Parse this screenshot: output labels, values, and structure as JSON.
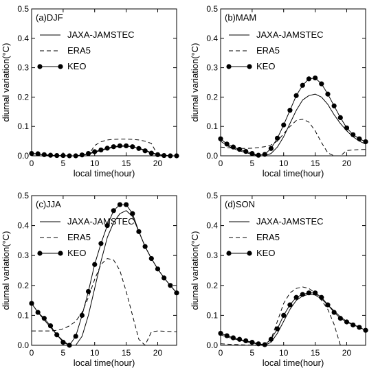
{
  "chart_data": [
    {
      "type": "line",
      "title": "(a)DJF",
      "xlabel": "local time(hour)",
      "ylabel": "diurnal variation(°C)",
      "xlim": [
        0,
        23
      ],
      "ylim": [
        0,
        0.5
      ],
      "xticks": [
        "0",
        "5",
        "10",
        "15",
        "20"
      ],
      "yticks": [
        "0.0",
        "0.1",
        "0.2",
        "0.3",
        "0.4",
        "0.5"
      ],
      "legend_position": "top-left",
      "series": [
        {
          "name": "JAXA-JAMSTEC",
          "style": "solid",
          "x": [
            0,
            1,
            2,
            3,
            4,
            5,
            6,
            7,
            8,
            9,
            10,
            11,
            12,
            13,
            14,
            15,
            16,
            17,
            18,
            19,
            20,
            21,
            22,
            23
          ],
          "values": [
            0.008,
            0.006,
            0.003,
            0.001,
            0.0,
            0.0,
            0.0,
            0.0,
            0.002,
            0.006,
            0.012,
            0.018,
            0.024,
            0.029,
            0.032,
            0.033,
            0.031,
            0.026,
            0.019,
            0.011,
            0.005,
            0.002,
            0.0,
            0.0
          ]
        },
        {
          "name": "ERA5",
          "style": "dashed",
          "x": [
            0,
            1,
            2,
            3,
            4,
            5,
            6,
            7,
            8,
            9,
            10,
            11,
            12,
            13,
            14,
            15,
            16,
            17,
            18,
            19,
            20,
            21,
            22,
            23
          ],
          "values": [
            0.0,
            0.0,
            0.0,
            0.0,
            0.0,
            0.0,
            0.0,
            0.0,
            0.0,
            0.002,
            0.035,
            0.048,
            0.054,
            0.056,
            0.057,
            0.057,
            0.056,
            0.054,
            0.05,
            0.042,
            0.002,
            0.0,
            0.0,
            0.0
          ]
        },
        {
          "name": "KEO",
          "style": "solid-marker",
          "x": [
            0,
            1,
            2,
            3,
            4,
            5,
            6,
            7,
            8,
            9,
            10,
            11,
            12,
            13,
            14,
            15,
            16,
            17,
            18,
            19,
            20,
            21,
            22,
            23
          ],
          "values": [
            0.008,
            0.007,
            0.004,
            0.002,
            0.001,
            0.001,
            0.0,
            0.0,
            0.003,
            0.008,
            0.014,
            0.02,
            0.026,
            0.031,
            0.034,
            0.034,
            0.031,
            0.025,
            0.017,
            0.009,
            0.004,
            0.001,
            0.0,
            0.0
          ]
        }
      ]
    },
    {
      "type": "line",
      "title": "(b)MAM",
      "xlabel": "local time(hour)",
      "ylabel": "diurnal variation(°C)",
      "xlim": [
        0,
        23
      ],
      "ylim": [
        0,
        0.5
      ],
      "xticks": [
        "0",
        "5",
        "10",
        "15",
        "20"
      ],
      "yticks": [
        "0.0",
        "0.1",
        "0.2",
        "0.3",
        "0.4",
        "0.5"
      ],
      "legend_position": "top-left",
      "series": [
        {
          "name": "JAXA-JAMSTEC",
          "style": "solid",
          "x": [
            0,
            1,
            2,
            3,
            4,
            5,
            6,
            7,
            8,
            9,
            10,
            11,
            12,
            13,
            14,
            15,
            16,
            17,
            18,
            19,
            20,
            21,
            22,
            23
          ],
          "values": [
            0.05,
            0.035,
            0.025,
            0.017,
            0.011,
            0.005,
            0.0,
            0.0,
            0.008,
            0.03,
            0.065,
            0.11,
            0.155,
            0.19,
            0.205,
            0.21,
            0.2,
            0.175,
            0.14,
            0.11,
            0.085,
            0.065,
            0.05,
            0.04
          ]
        },
        {
          "name": "ERA5",
          "style": "dashed",
          "x": [
            0,
            1,
            2,
            3,
            4,
            5,
            6,
            7,
            8,
            9,
            10,
            11,
            12,
            13,
            14,
            15,
            16,
            17,
            18,
            19,
            20,
            21,
            22,
            23
          ],
          "values": [
            0.03,
            0.028,
            0.026,
            0.025,
            0.025,
            0.026,
            0.028,
            0.031,
            0.037,
            0.05,
            0.075,
            0.1,
            0.12,
            0.125,
            0.115,
            0.085,
            0.045,
            0.01,
            0.0,
            0.0,
            0.018,
            0.02,
            0.021,
            0.022
          ]
        },
        {
          "name": "KEO",
          "style": "solid-marker",
          "x": [
            0,
            1,
            2,
            3,
            4,
            5,
            6,
            7,
            8,
            9,
            10,
            11,
            12,
            13,
            14,
            15,
            16,
            17,
            18,
            19,
            20,
            21,
            22,
            23
          ],
          "values": [
            0.058,
            0.04,
            0.03,
            0.022,
            0.015,
            0.008,
            0.002,
            0.005,
            0.025,
            0.06,
            0.105,
            0.155,
            0.205,
            0.24,
            0.262,
            0.265,
            0.245,
            0.21,
            0.17,
            0.13,
            0.095,
            0.072,
            0.058,
            0.048
          ]
        }
      ]
    },
    {
      "type": "line",
      "title": "(c)JJA",
      "xlabel": "local time(hour)",
      "ylabel": "diurnal variation(°C)",
      "xlim": [
        0,
        23
      ],
      "ylim": [
        0,
        0.5
      ],
      "xticks": [
        "0",
        "5",
        "10",
        "15",
        "20"
      ],
      "yticks": [
        "0.0",
        "0.1",
        "0.2",
        "0.3",
        "0.4",
        "0.5"
      ],
      "legend_position": "top-left",
      "series": [
        {
          "name": "JAXA-JAMSTEC",
          "style": "solid",
          "x": [
            0,
            1,
            2,
            3,
            4,
            5,
            6,
            7,
            8,
            9,
            10,
            11,
            12,
            13,
            14,
            15,
            16,
            17,
            18,
            19,
            20,
            21,
            22,
            23
          ],
          "values": [
            0.14,
            0.11,
            0.085,
            0.06,
            0.035,
            0.015,
            0.0,
            0.0,
            0.03,
            0.1,
            0.19,
            0.28,
            0.36,
            0.41,
            0.44,
            0.45,
            0.43,
            0.38,
            0.33,
            0.29,
            0.255,
            0.225,
            0.2,
            0.175
          ]
        },
        {
          "name": "ERA5",
          "style": "dashed",
          "x": [
            0,
            1,
            2,
            3,
            4,
            5,
            6,
            7,
            8,
            9,
            10,
            11,
            12,
            13,
            14,
            15,
            16,
            17,
            18,
            19,
            20,
            21,
            22,
            23
          ],
          "values": [
            0.048,
            0.048,
            0.048,
            0.048,
            0.05,
            0.055,
            0.065,
            0.08,
            0.11,
            0.16,
            0.22,
            0.27,
            0.29,
            0.285,
            0.25,
            0.18,
            0.1,
            0.02,
            0.0,
            0.045,
            0.048,
            0.047,
            0.046,
            0.045
          ]
        },
        {
          "name": "KEO",
          "style": "solid-marker",
          "x": [
            0,
            1,
            2,
            3,
            4,
            5,
            6,
            7,
            8,
            9,
            10,
            11,
            12,
            13,
            14,
            15,
            16,
            17,
            18,
            19,
            20,
            21,
            22,
            23
          ],
          "values": [
            0.14,
            0.11,
            0.09,
            0.065,
            0.035,
            0.01,
            0.0,
            0.03,
            0.1,
            0.18,
            0.27,
            0.34,
            0.4,
            0.45,
            0.47,
            0.47,
            0.44,
            0.38,
            0.33,
            0.29,
            0.255,
            0.225,
            0.2,
            0.175
          ]
        }
      ]
    },
    {
      "type": "line",
      "title": "(d)SON",
      "xlabel": "local time(hour)",
      "ylabel": "diurnal variation(°C)",
      "xlim": [
        0,
        23
      ],
      "ylim": [
        0,
        0.5
      ],
      "xticks": [
        "0",
        "5",
        "10",
        "15",
        "20"
      ],
      "yticks": [
        "0.0",
        "0.1",
        "0.2",
        "0.3",
        "0.4",
        "0.5"
      ],
      "legend_position": "top-left",
      "series": [
        {
          "name": "JAXA-JAMSTEC",
          "style": "solid",
          "x": [
            0,
            1,
            2,
            3,
            4,
            5,
            6,
            7,
            8,
            9,
            10,
            11,
            12,
            13,
            14,
            15,
            16,
            17,
            18,
            19,
            20,
            21,
            22,
            23
          ],
          "values": [
            0.035,
            0.028,
            0.022,
            0.017,
            0.012,
            0.008,
            0.004,
            0.0,
            0.01,
            0.04,
            0.08,
            0.12,
            0.15,
            0.165,
            0.17,
            0.168,
            0.155,
            0.135,
            0.115,
            0.095,
            0.08,
            0.07,
            0.06,
            0.05
          ]
        },
        {
          "name": "ERA5",
          "style": "dashed",
          "x": [
            0,
            1,
            2,
            3,
            4,
            5,
            6,
            7,
            8,
            9,
            10,
            11,
            12,
            13,
            14,
            15,
            16,
            17,
            18,
            19,
            20,
            21,
            22,
            23
          ],
          "values": [
            0.005,
            0.004,
            0.003,
            0.002,
            0.001,
            0.001,
            0.001,
            0.003,
            0.02,
            0.08,
            0.14,
            0.175,
            0.19,
            0.195,
            0.19,
            0.175,
            0.15,
            0.12,
            0.07,
            0.0,
            0.0,
            0.0,
            0.0,
            0.0
          ]
        },
        {
          "name": "KEO",
          "style": "solid-marker",
          "x": [
            0,
            1,
            2,
            3,
            4,
            5,
            6,
            7,
            8,
            9,
            10,
            11,
            12,
            13,
            14,
            15,
            16,
            17,
            18,
            19,
            20,
            21,
            22,
            23
          ],
          "values": [
            0.04,
            0.032,
            0.025,
            0.02,
            0.015,
            0.01,
            0.005,
            0.002,
            0.02,
            0.055,
            0.1,
            0.135,
            0.16,
            0.17,
            0.175,
            0.175,
            0.16,
            0.135,
            0.11,
            0.09,
            0.078,
            0.068,
            0.06,
            0.05
          ]
        }
      ]
    }
  ]
}
